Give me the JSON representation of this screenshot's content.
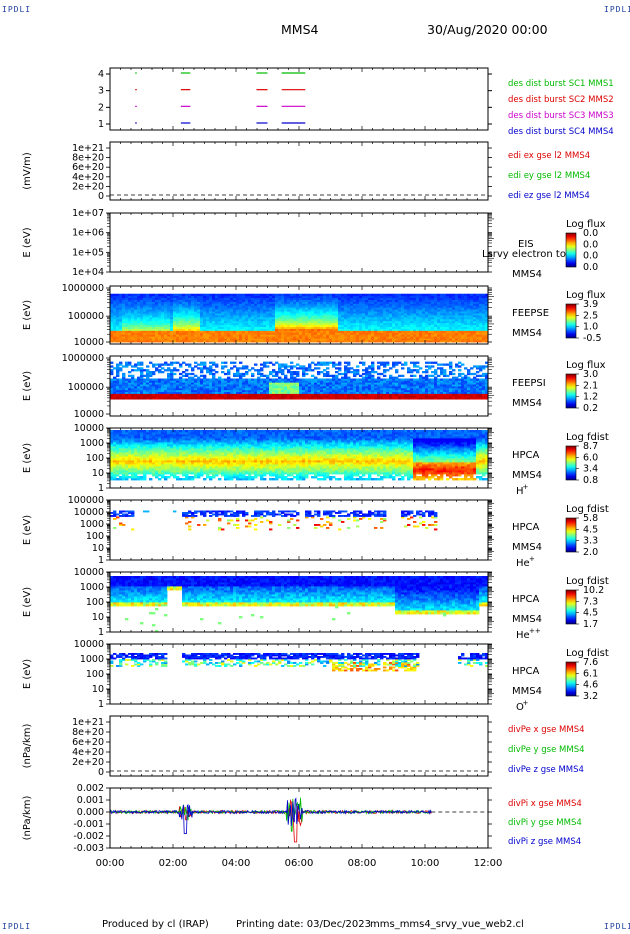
{
  "header": {
    "corner_label": "IPDLI",
    "spacecraft": "MMS4",
    "datetime": "30/Aug/2020 00:00"
  },
  "footer": {
    "produced_by": "Produced by cl (IRAP)",
    "printing_date": "Printing date: 03/Dec/2023",
    "script_name": "mms_mms4_srvy_vue_web2.cl"
  },
  "colors": {
    "red": "#dd0000",
    "green": "#00bb00",
    "blue": "#0000cc",
    "magenta": "#cc00cc"
  },
  "time_axis": {
    "ticks": [
      "00:00",
      "02:00",
      "04:00",
      "06:00",
      "08:00",
      "10:00",
      "12:00"
    ],
    "range_hours": [
      0,
      12
    ]
  },
  "chart_data": [
    {
      "type": "line",
      "id": "burst",
      "yticks": [
        "1",
        "2",
        "3",
        "4"
      ],
      "series": [
        {
          "name": "des dist burst SC1 MMS1",
          "level": 4,
          "color": "#00bb00",
          "intervals": [
            [
              0.8,
              0.85
            ],
            [
              2.25,
              2.55
            ],
            [
              4.65,
              5.0
            ],
            [
              5.45,
              6.2
            ]
          ]
        },
        {
          "name": "des dist burst SC2 MMS2",
          "level": 3,
          "color": "#dd0000",
          "intervals": [
            [
              0.8,
              0.85
            ],
            [
              2.25,
              2.55
            ],
            [
              4.65,
              5.0
            ],
            [
              5.45,
              6.2
            ]
          ]
        },
        {
          "name": "des dist burst SC3 MMS3",
          "level": 2,
          "color": "#cc00cc",
          "intervals": [
            [
              0.8,
              0.85
            ],
            [
              2.25,
              2.55
            ],
            [
              4.65,
              5.0
            ],
            [
              5.45,
              6.2
            ]
          ]
        },
        {
          "name": "des dist burst SC4 MMS4",
          "level": 1,
          "color": "#0000cc",
          "intervals": [
            [
              0.8,
              0.85
            ],
            [
              2.25,
              2.55
            ],
            [
              4.65,
              5.0
            ],
            [
              5.45,
              6.2
            ]
          ]
        }
      ]
    },
    {
      "type": "line",
      "id": "edi",
      "ylabel": "(mV/m)",
      "yticks": [
        "0",
        "2e+20",
        "4e+20",
        "6e+20",
        "8e+20",
        "1e+21"
      ],
      "series": [
        {
          "name": "edi ex gse l2 MMS4",
          "color": "#dd0000"
        },
        {
          "name": "edi ey gse l2 MMS4",
          "color": "#00bb00"
        },
        {
          "name": "edi ez gse l2 MMS4",
          "color": "#0000cc"
        }
      ]
    },
    {
      "type": "heatmap",
      "id": "eis",
      "ylabel": "E (eV)",
      "yticks": [
        "1e+04",
        "1e+05",
        "1e+06",
        "1e+07"
      ],
      "instrument": "EIS",
      "spacecraft": "MMS4",
      "overlay_text": "Lsrvy electron to",
      "colorbar_title": "Log flux",
      "colorbar_ticks": [
        "0.0",
        "0.0",
        "0.0",
        "0.0"
      ]
    },
    {
      "type": "heatmap",
      "id": "feepse",
      "ylabel": "E (eV)",
      "yticks": [
        "10000",
        "100000",
        "1000000"
      ],
      "instrument": "FEEPSE",
      "spacecraft": "MMS4",
      "colorbar_title": "Log flux",
      "colorbar_ticks": [
        "3.9",
        "2.5",
        "1.0",
        "-0.5"
      ]
    },
    {
      "type": "heatmap",
      "id": "feepsi",
      "ylabel": "E (eV)",
      "yticks": [
        "10000",
        "100000",
        "1000000"
      ],
      "instrument": "FEEPSI",
      "spacecraft": "MMS4",
      "colorbar_title": "Log flux",
      "colorbar_ticks": [
        "3.0",
        "2.1",
        "1.2",
        "0.2"
      ]
    },
    {
      "type": "heatmap",
      "id": "hpca_h",
      "ylabel": "E (eV)",
      "yticks": [
        "1",
        "10",
        "100",
        "1000",
        "10000"
      ],
      "instrument": "HPCA",
      "spacecraft": "MMS4",
      "species": "H",
      "species_sup": "+",
      "colorbar_title": "Log fdist",
      "colorbar_ticks": [
        "8.7",
        "6.0",
        "3.4",
        "0.8"
      ]
    },
    {
      "type": "heatmap",
      "id": "hpca_he",
      "ylabel": "E (eV)",
      "yticks": [
        "1",
        "10",
        "100",
        "1000",
        "10000",
        "100000"
      ],
      "instrument": "HPCA",
      "spacecraft": "MMS4",
      "species": "He",
      "species_sup": "+",
      "colorbar_title": "Log fdist",
      "colorbar_ticks": [
        "5.8",
        "4.5",
        "3.3",
        "2.0"
      ]
    },
    {
      "type": "heatmap",
      "id": "hpca_hepp",
      "ylabel": "E (eV)",
      "yticks": [
        "1",
        "10",
        "100",
        "1000",
        "10000"
      ],
      "instrument": "HPCA",
      "spacecraft": "MMS4",
      "species": "He",
      "species_sup": "++",
      "colorbar_title": "Log fdist",
      "colorbar_ticks": [
        "10.2",
        "7.3",
        "4.5",
        "1.7"
      ]
    },
    {
      "type": "heatmap",
      "id": "hpca_o",
      "ylabel": "E (eV)",
      "yticks": [
        "1",
        "10",
        "100",
        "1000",
        "10000"
      ],
      "instrument": "HPCA",
      "spacecraft": "MMS4",
      "species": "O",
      "species_sup": "+",
      "colorbar_title": "Log fdist",
      "colorbar_ticks": [
        "7.6",
        "6.1",
        "4.6",
        "3.2"
      ]
    },
    {
      "type": "line",
      "id": "divpe",
      "ylabel": "(nPa/km)",
      "yticks": [
        "0",
        "2e+20",
        "4e+20",
        "6e+20",
        "8e+20",
        "1e+21"
      ],
      "series": [
        {
          "name": "divPe x gse MMS4",
          "color": "#dd0000"
        },
        {
          "name": "divPe y gse MMS4",
          "color": "#00bb00"
        },
        {
          "name": "divPe z gse MMS4",
          "color": "#0000cc"
        }
      ]
    },
    {
      "type": "line",
      "id": "divpi",
      "ylabel": "(nPa/km)",
      "yticks": [
        "-0.003",
        "-0.002",
        "-0.001",
        "0.000",
        "0.001",
        "0.002"
      ],
      "ylim": [
        -0.003,
        0.002
      ],
      "data_end_hours": 10.2,
      "series": [
        {
          "name": "divPi x gse MMS4",
          "color": "#dd0000"
        },
        {
          "name": "divPi y gse MMS4",
          "color": "#00bb00"
        },
        {
          "name": "divPi z gse MMS4",
          "color": "#0000cc"
        }
      ]
    }
  ]
}
